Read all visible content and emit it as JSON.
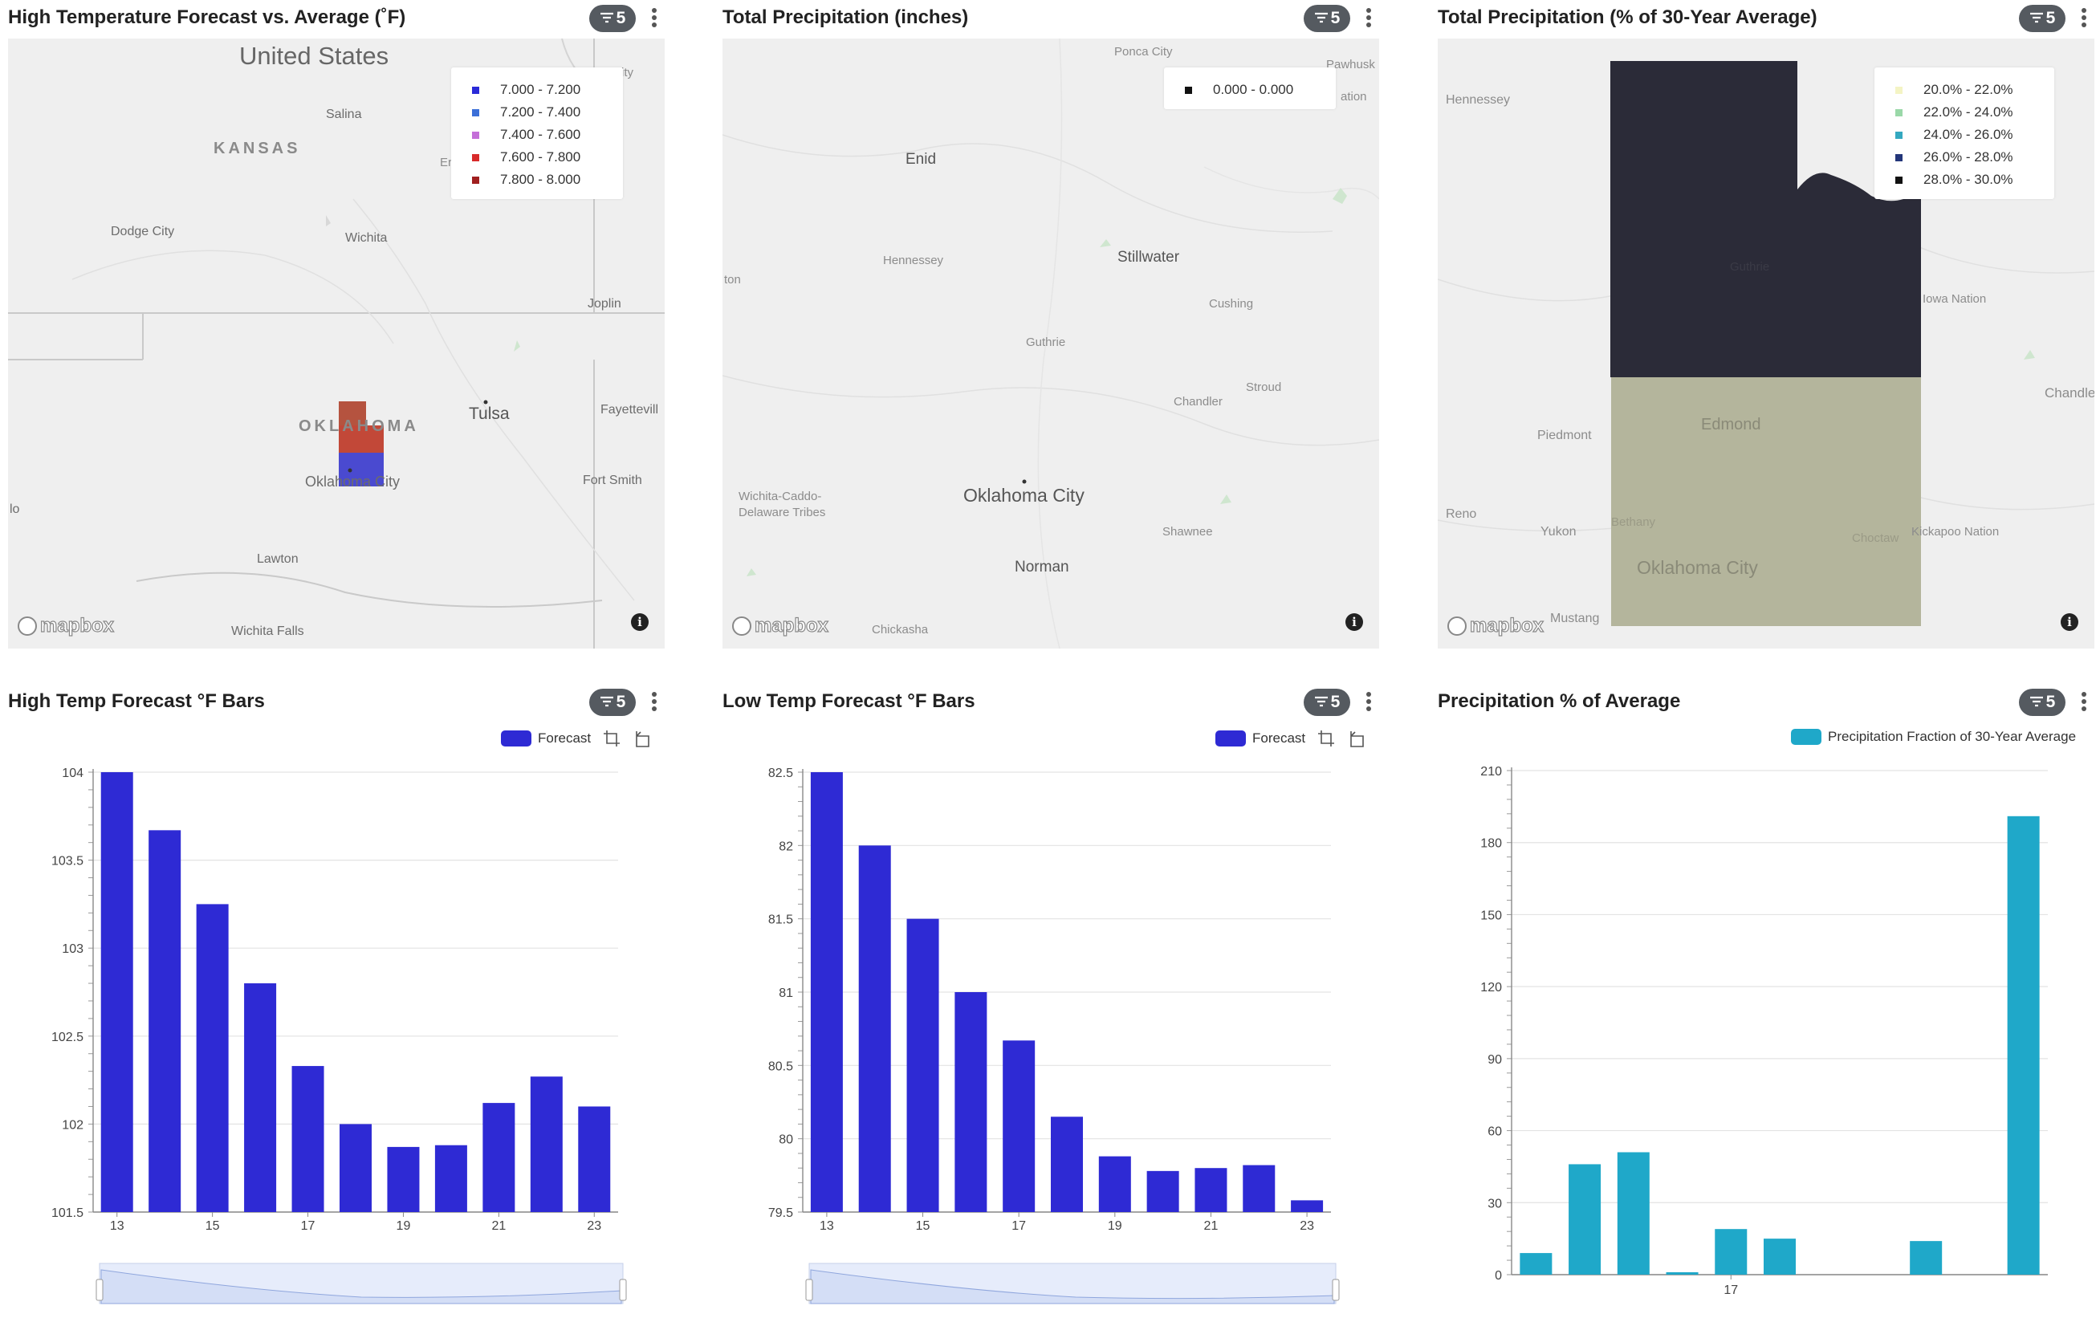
{
  "panels": [
    {
      "title": "High Temperature Forecast vs. Average (˚F)",
      "filter_count": "5",
      "map": {
        "labels": {
          "country": "United States",
          "state1": "KANSAS",
          "state2": "OKLAHOMA",
          "salina": "Salina",
          "dodge": "Dodge City",
          "wichita": "Wichita",
          "joplin": "Joplin",
          "tulsa": "Tulsa",
          "fayetteville": "Fayettevill",
          "okc": "Oklahoma City",
          "fortsmith": "Fort Smith",
          "lawton": "Lawton",
          "wichitafalls": "Wichita Falls",
          "lo": "lo",
          "ity": "ity",
          "er": "Er"
        },
        "legend": [
          {
            "label": "7.000 - 7.200",
            "color": "#2a2ad8"
          },
          {
            "label": "7.200 - 7.400",
            "color": "#3b6fd8"
          },
          {
            "label": "7.400 - 7.600",
            "color": "#c46fd8"
          },
          {
            "label": "7.600 - 7.800",
            "color": "#d82a2a"
          },
          {
            "label": "7.800 - 8.000",
            "color": "#a01f1f"
          }
        ]
      }
    },
    {
      "title": "Total Precipitation (inches)",
      "filter_count": "5",
      "map": {
        "labels": {
          "ponca": "Ponca City",
          "pawhusk": "Pawhusk",
          "ation": "ation",
          "enid": "Enid",
          "hennessey": "Hennessey",
          "ton": "ton",
          "stillwater": "Stillwater",
          "cushing": "Cushing",
          "guthrie": "Guthrie",
          "stroud": "Stroud",
          "chandler": "Chandler",
          "wichitacaddo": "Wichita-Caddo-",
          "delaware": "Delaware Tribes",
          "okc": "Oklahoma City",
          "shawnee": "Shawnee",
          "norman": "Norman",
          "chickasha": "Chickasha"
        },
        "legend": [
          {
            "label": "0.000 - 0.000",
            "color": "#111111"
          }
        ]
      }
    },
    {
      "title": "Total Precipitation (% of 30-Year Average)",
      "filter_count": "5",
      "map": {
        "labels": {
          "hennessey": "Hennessey",
          "guthrie": "Guthrie",
          "iowa": "Iowa Nation",
          "chandle": "Chandle",
          "piedmont": "Piedmont",
          "edmond": "Edmond",
          "reno": "Reno",
          "yukon": "Yukon",
          "bethany": "Bethany",
          "choctaw": "Choctaw",
          "kickapoo": "Kickapoo Nation",
          "okc": "Oklahoma City",
          "mustang": "Mustang"
        },
        "legend": [
          {
            "label": "20.0% - 22.0%",
            "color": "#f4f4c4"
          },
          {
            "label": "22.0% - 24.0%",
            "color": "#9ad8a8"
          },
          {
            "label": "24.0% - 26.0%",
            "color": "#34a8c0"
          },
          {
            "label": "26.0% - 28.0%",
            "color": "#23367a"
          },
          {
            "label": "28.0% - 30.0%",
            "color": "#111111"
          }
        ]
      }
    },
    {
      "title": "High Temp Forecast °F Bars",
      "filter_count": "5",
      "legend_label": "Forecast"
    },
    {
      "title": "Low Temp Forecast °F Bars",
      "filter_count": "5",
      "legend_label": "Forecast"
    },
    {
      "title": "Precipitation % of Average",
      "filter_count": "5",
      "legend_label": "Precipitation Fraction of 30-Year Average"
    }
  ],
  "map_attribution": "mapbox",
  "chart_data": [
    {
      "type": "bar",
      "x": [
        13,
        14,
        15,
        16,
        17,
        18,
        19,
        20,
        21,
        22,
        23
      ],
      "series": [
        {
          "name": "Forecast",
          "values": [
            104.0,
            103.67,
            103.25,
            102.8,
            102.33,
            102.0,
            101.87,
            101.88,
            102.12,
            102.27,
            102.1
          ],
          "color": "#2e2ad4"
        }
      ],
      "x_tick_labels": [
        "13",
        "15",
        "17",
        "19",
        "21",
        "23"
      ],
      "y_tick_labels": [
        "101.5",
        "102",
        "102.5",
        "103",
        "103.5",
        "104"
      ],
      "ylim": [
        101.5,
        104
      ],
      "xlabel": "",
      "ylabel": ""
    },
    {
      "type": "bar",
      "x": [
        13,
        14,
        15,
        16,
        17,
        18,
        19,
        20,
        21,
        22,
        23
      ],
      "series": [
        {
          "name": "Forecast",
          "values": [
            82.5,
            82.0,
            81.5,
            81.0,
            80.67,
            80.15,
            79.88,
            79.78,
            79.8,
            79.82,
            79.58
          ],
          "color": "#2e2ad4"
        }
      ],
      "x_tick_labels": [
        "13",
        "15",
        "17",
        "19",
        "21",
        "23"
      ],
      "y_tick_labels": [
        "79.5",
        "80",
        "80.5",
        "81",
        "81.5",
        "82",
        "82.5"
      ],
      "ylim": [
        79.5,
        82.5
      ],
      "xlabel": "",
      "ylabel": ""
    },
    {
      "type": "bar",
      "x": [
        13,
        14,
        15,
        16,
        17,
        18,
        19,
        20,
        21,
        22,
        23
      ],
      "series": [
        {
          "name": "Precipitation Fraction of 30-Year Average",
          "values": [
            9,
            46,
            51,
            1,
            19,
            15,
            0,
            0,
            14,
            0,
            191
          ],
          "color": "#1fa8c9"
        }
      ],
      "x_tick_labels": [
        "17"
      ],
      "y_tick_labels": [
        "0",
        "30",
        "60",
        "90",
        "120",
        "150",
        "180",
        "210"
      ],
      "ylim": [
        0,
        210
      ],
      "xlabel": "",
      "ylabel": ""
    }
  ]
}
